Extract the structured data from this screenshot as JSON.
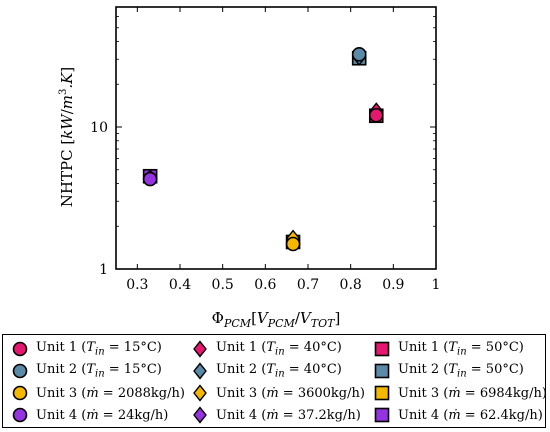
{
  "chart_data": {
    "type": "scatter",
    "title": "",
    "xlabel": "Φ_{PCM}[V_{PCM}/V_{TOT}]",
    "ylabel": "NHTPC [kW/m^3.K]",
    "xlim": [
      0.25,
      1.0
    ],
    "ylim": [
      1,
      70
    ],
    "yscale": "log",
    "grid": false,
    "x_ticks": [
      0.3,
      0.4,
      0.5,
      0.6,
      0.7,
      0.8,
      0.9,
      1
    ],
    "x_tick_labels": [
      "0.3",
      "0.4",
      "0.5",
      "0.6",
      "0.7",
      "0.8",
      "0.9",
      "1"
    ],
    "y_ticks": [
      1,
      10
    ],
    "y_tick_labels": [
      "1",
      "10"
    ],
    "legend_position": "below",
    "series": [
      {
        "name": "Unit 1 (T_in = 15°C)",
        "marker": "circle",
        "color": "#e6176f",
        "points": [
          {
            "x": 0.86,
            "y": 12.1
          }
        ]
      },
      {
        "name": "Unit 2 (T_in = 15°C)",
        "marker": "circle",
        "color": "#5b8aa8",
        "points": [
          {
            "x": 0.82,
            "y": 32.5
          }
        ]
      },
      {
        "name": "Unit 3 (ṁ = 2088kg/h)",
        "marker": "circle",
        "color": "#f5b800",
        "points": [
          {
            "x": 0.665,
            "y": 1.5
          }
        ]
      },
      {
        "name": "Unit 4 (ṁ = 24kg/h)",
        "marker": "circle",
        "color": "#9533e0",
        "points": [
          {
            "x": 0.33,
            "y": 4.3
          }
        ]
      },
      {
        "name": "Unit 1 (T_in = 40°C)",
        "marker": "diamond",
        "color": "#e6176f",
        "points": [
          {
            "x": 0.86,
            "y": 13.0
          }
        ]
      },
      {
        "name": "Unit 2 (T_in = 40°C)",
        "marker": "diamond",
        "color": "#5b8aa8",
        "points": [
          {
            "x": 0.82,
            "y": 31.0
          }
        ]
      },
      {
        "name": "Unit 3 (ṁ = 3600kg/h)",
        "marker": "diamond",
        "color": "#f5b800",
        "points": [
          {
            "x": 0.665,
            "y": 1.65
          }
        ]
      },
      {
        "name": "Unit 4 (ṁ = 37.2kg/h)",
        "marker": "diamond",
        "color": "#9533e0",
        "points": [
          {
            "x": 0.33,
            "y": 4.4
          }
        ]
      },
      {
        "name": "Unit 1 (T_in = 50°C)",
        "marker": "square",
        "color": "#e6176f",
        "points": [
          {
            "x": 0.86,
            "y": 12.0
          }
        ]
      },
      {
        "name": "Unit 2 (T_in = 50°C)",
        "marker": "square",
        "color": "#5b8aa8",
        "points": [
          {
            "x": 0.82,
            "y": 30.5
          }
        ]
      },
      {
        "name": "Unit 3 (ṁ = 6984kg/h)",
        "marker": "square",
        "color": "#f5b800",
        "points": [
          {
            "x": 0.665,
            "y": 1.55
          }
        ]
      },
      {
        "name": "Unit 4 (ṁ = 62.4kg/h)",
        "marker": "square",
        "color": "#9533e0",
        "points": [
          {
            "x": 0.33,
            "y": 4.5
          }
        ]
      }
    ]
  },
  "legend": [
    {
      "unit": "Unit 1",
      "paren": "(",
      "var": "T",
      "sub": "in",
      "mid": " = 15°C)",
      "marker": "circle",
      "color": "#e6176f"
    },
    {
      "unit": "Unit 2",
      "paren": "(",
      "var": "T",
      "sub": "in",
      "mid": " = 15°C)",
      "marker": "circle",
      "color": "#5b8aa8"
    },
    {
      "unit": "Unit 3",
      "paren": "(",
      "var": "ṁ",
      "sub": "",
      "mid": " = 2088kg/h)",
      "marker": "circle",
      "color": "#f5b800"
    },
    {
      "unit": "Unit 4",
      "paren": "(",
      "var": "ṁ",
      "sub": "",
      "mid": " = 24kg/h)",
      "marker": "circle",
      "color": "#9533e0"
    },
    {
      "unit": "Unit 1",
      "paren": "(",
      "var": "T",
      "sub": "in",
      "mid": " = 40°C)",
      "marker": "diamond",
      "color": "#e6176f"
    },
    {
      "unit": "Unit 2",
      "paren": "(",
      "var": "T",
      "sub": "in",
      "mid": " = 40°C)",
      "marker": "diamond",
      "color": "#5b8aa8"
    },
    {
      "unit": "Unit 3",
      "paren": "(",
      "var": "ṁ",
      "sub": "",
      "mid": " = 3600kg/h)",
      "marker": "diamond",
      "color": "#f5b800"
    },
    {
      "unit": "Unit 4",
      "paren": "(",
      "var": "ṁ",
      "sub": "",
      "mid": " = 37.2kg/h)",
      "marker": "diamond",
      "color": "#9533e0"
    },
    {
      "unit": "Unit 1",
      "paren": "(",
      "var": "T",
      "sub": "in",
      "mid": " = 50°C)",
      "marker": "square",
      "color": "#e6176f"
    },
    {
      "unit": "Unit 2",
      "paren": "(",
      "var": "T",
      "sub": "in",
      "mid": " = 50°C)",
      "marker": "square",
      "color": "#5b8aa8"
    },
    {
      "unit": "Unit 3",
      "paren": "(",
      "var": "ṁ",
      "sub": "",
      "mid": " = 6984kg/h)",
      "marker": "square",
      "color": "#f5b800"
    },
    {
      "unit": "Unit 4",
      "paren": "(",
      "var": "ṁ",
      "sub": "",
      "mid": " = 62.4kg/h)",
      "marker": "square",
      "color": "#9533e0"
    }
  ]
}
